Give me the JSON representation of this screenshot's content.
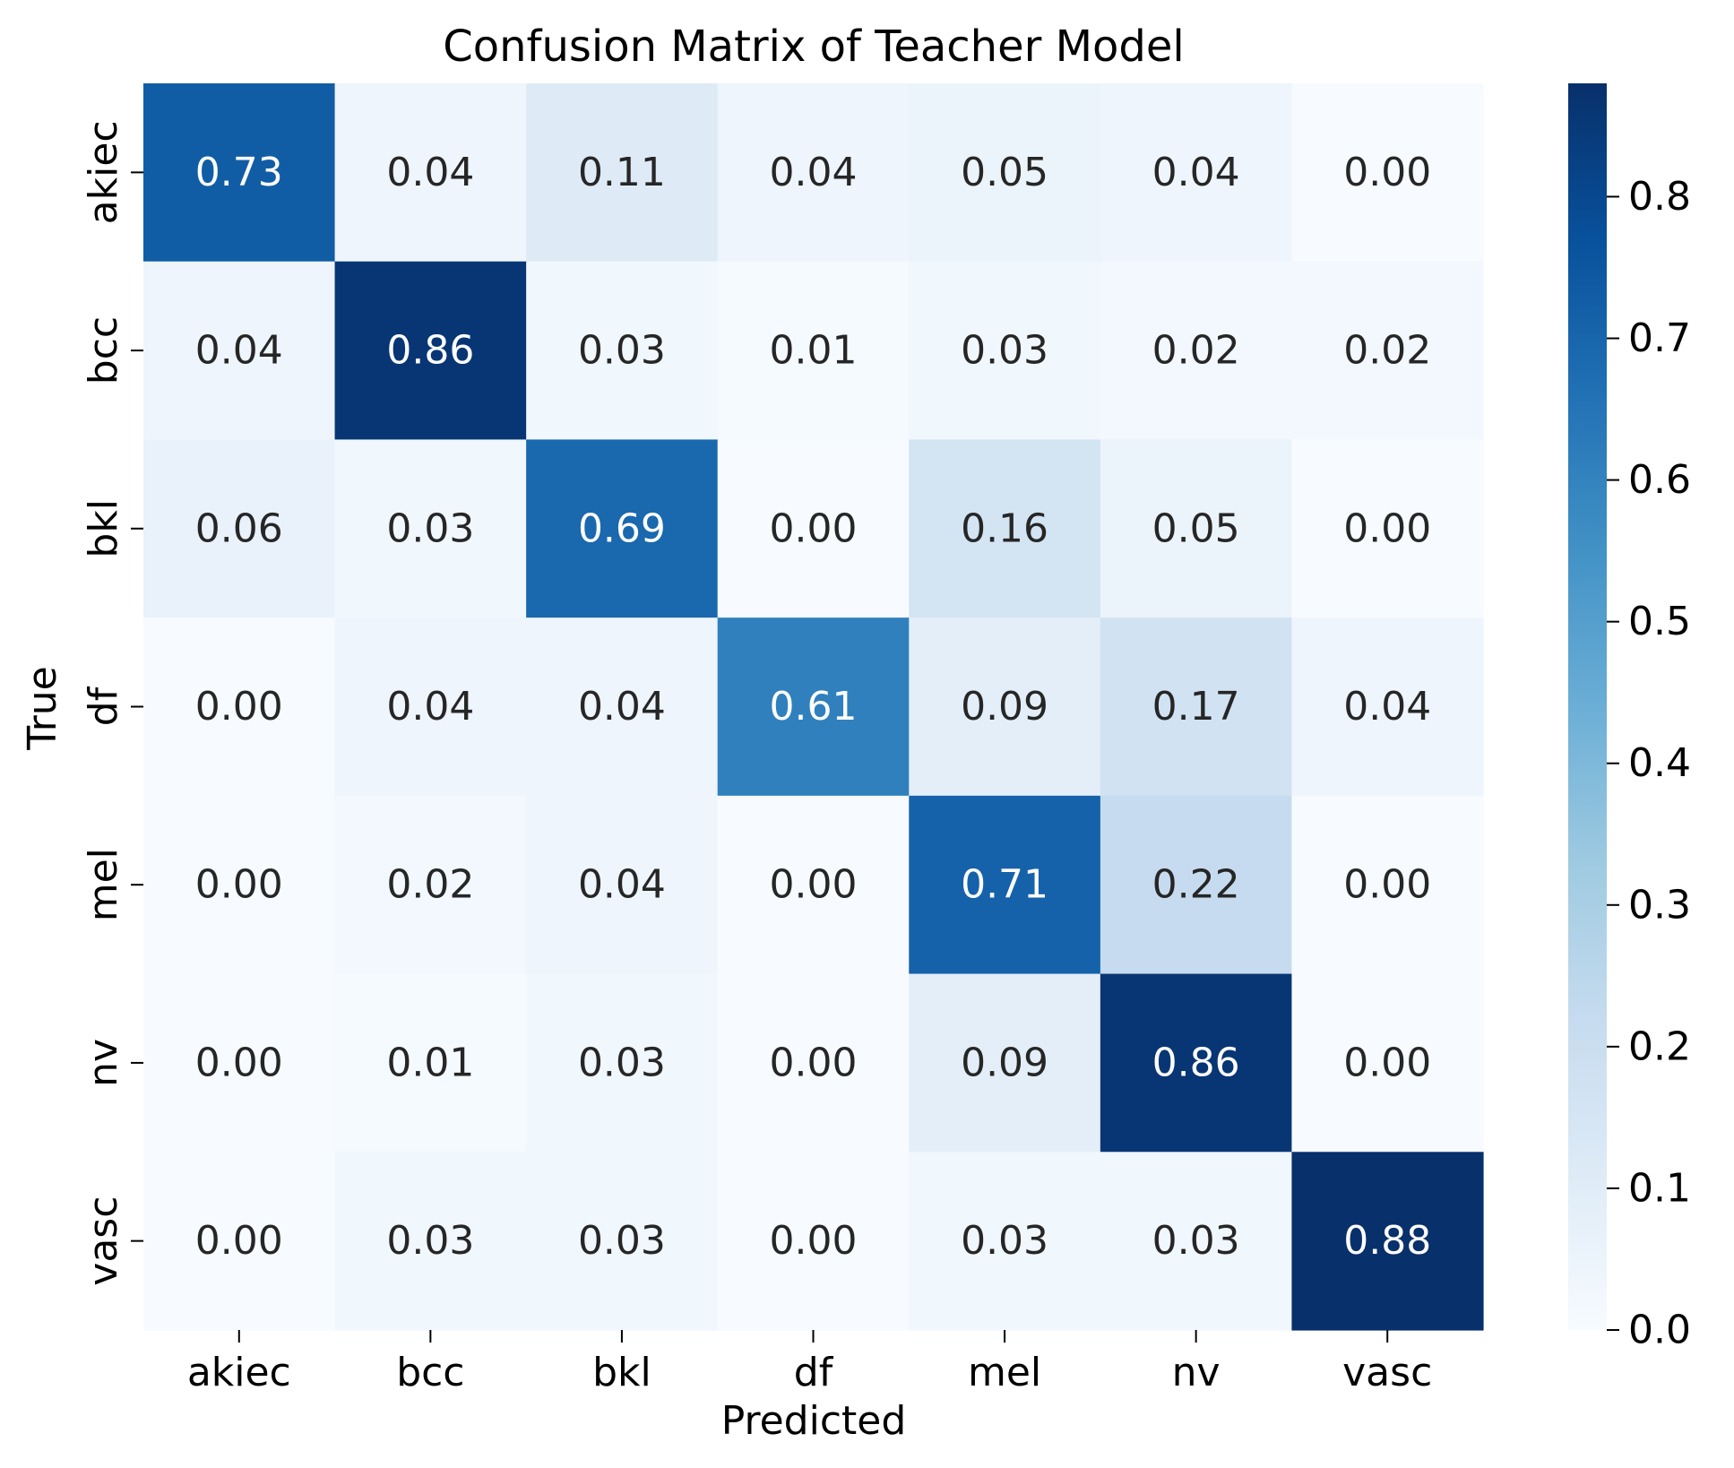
{
  "chart_data": {
    "type": "heatmap",
    "title": "Confusion Matrix of Teacher Model",
    "xlabel": "Predicted",
    "ylabel": "True",
    "x_categories": [
      "akiec",
      "bcc",
      "bkl",
      "df",
      "mel",
      "nv",
      "vasc"
    ],
    "y_categories": [
      "akiec",
      "bcc",
      "bkl",
      "df",
      "mel",
      "nv",
      "vasc"
    ],
    "values": [
      [
        0.73,
        0.04,
        0.11,
        0.04,
        0.05,
        0.04,
        0.0
      ],
      [
        0.04,
        0.86,
        0.03,
        0.01,
        0.03,
        0.02,
        0.02
      ],
      [
        0.06,
        0.03,
        0.69,
        0.0,
        0.16,
        0.05,
        0.0
      ],
      [
        0.0,
        0.04,
        0.04,
        0.61,
        0.09,
        0.17,
        0.04
      ],
      [
        0.0,
        0.02,
        0.04,
        0.0,
        0.71,
        0.22,
        0.0
      ],
      [
        0.0,
        0.01,
        0.03,
        0.0,
        0.09,
        0.86,
        0.0
      ],
      [
        0.0,
        0.03,
        0.03,
        0.0,
        0.03,
        0.03,
        0.88
      ]
    ],
    "value_format": "0.00",
    "colormap": "Blues",
    "colormap_stops": [
      "#f7fbff",
      "#deebf7",
      "#c6dbef",
      "#9ecae1",
      "#6baed6",
      "#4292c6",
      "#2171b5",
      "#08519c",
      "#08306b"
    ],
    "colorbar": {
      "range": [
        0.0,
        0.88
      ],
      "ticks": [
        "0.0",
        "0.1",
        "0.2",
        "0.3",
        "0.4",
        "0.5",
        "0.6",
        "0.7",
        "0.8"
      ]
    },
    "grid": false,
    "legend": "colorbar-right"
  }
}
